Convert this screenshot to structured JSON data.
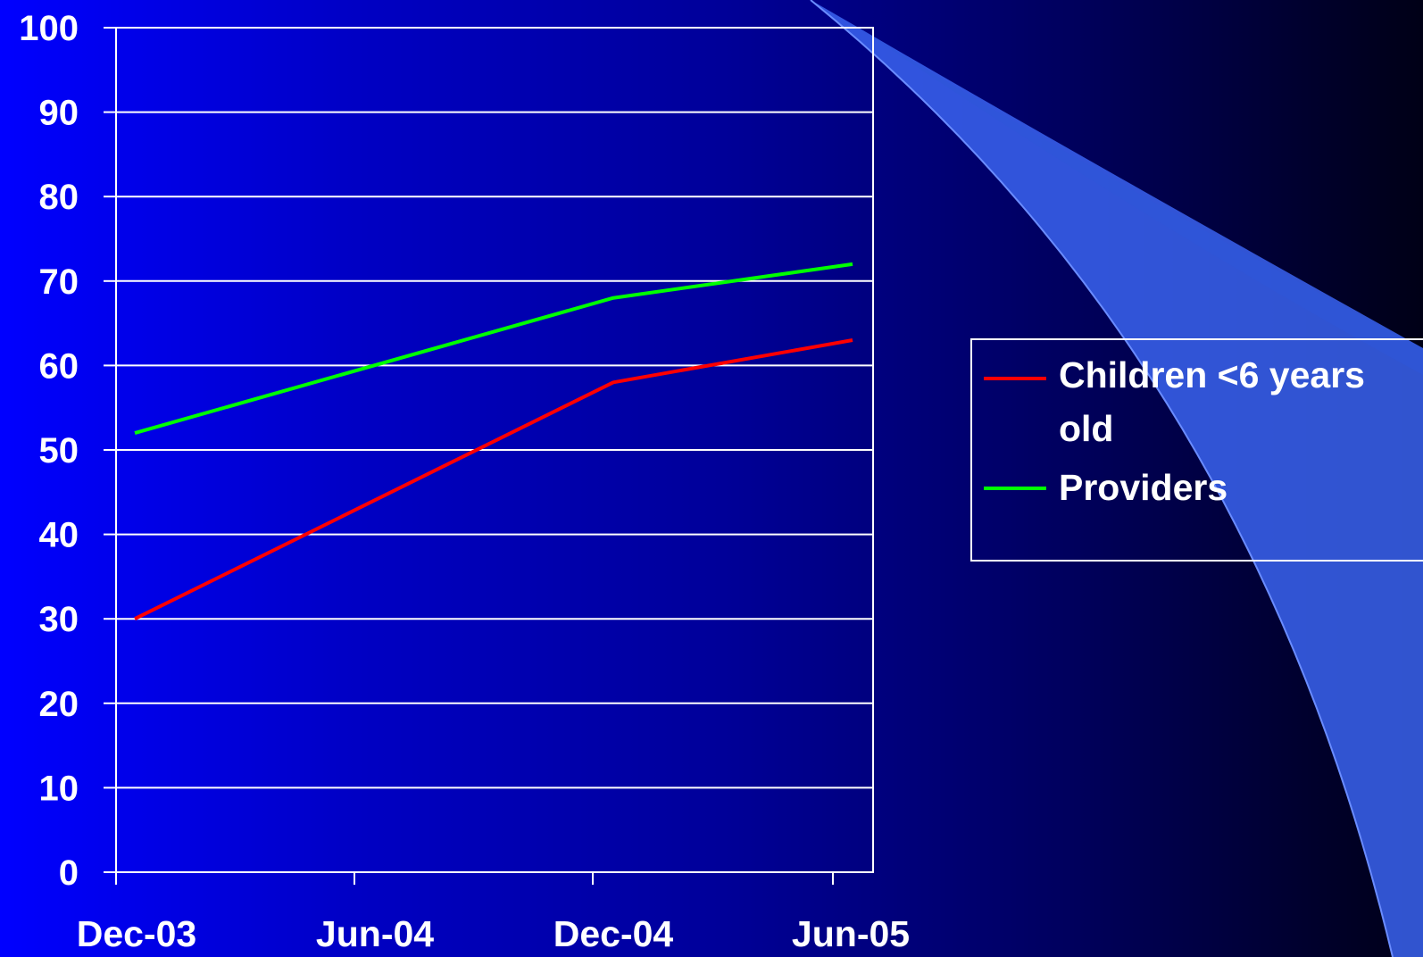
{
  "chart_data": {
    "type": "line",
    "title": "",
    "xlabel": "",
    "ylabel": "",
    "categories": [
      "Dec-03",
      "Jun-04",
      "Dec-04",
      "Jun-05"
    ],
    "y_ticks": [
      "0",
      "10",
      "20",
      "30",
      "40",
      "50",
      "60",
      "70",
      "80",
      "90",
      "100"
    ],
    "ylim": [
      0,
      100
    ],
    "grid": true,
    "legend_position": "right",
    "series": [
      {
        "name": "Children <6 years old",
        "name_lines": [
          "Children <6 years",
          "old"
        ],
        "color": "#ff0000",
        "points": [
          {
            "x": "Dec-03",
            "y": 30
          },
          {
            "x": "Dec-04",
            "y": 58
          },
          {
            "x": "Jun-05",
            "y": 63
          }
        ]
      },
      {
        "name": "Providers",
        "name_lines": [
          "Providers"
        ],
        "color": "#00ff00",
        "points": [
          {
            "x": "Dec-03",
            "y": 52
          },
          {
            "x": "Dec-04",
            "y": 68
          },
          {
            "x": "Jun-05",
            "y": 72
          }
        ]
      }
    ]
  }
}
